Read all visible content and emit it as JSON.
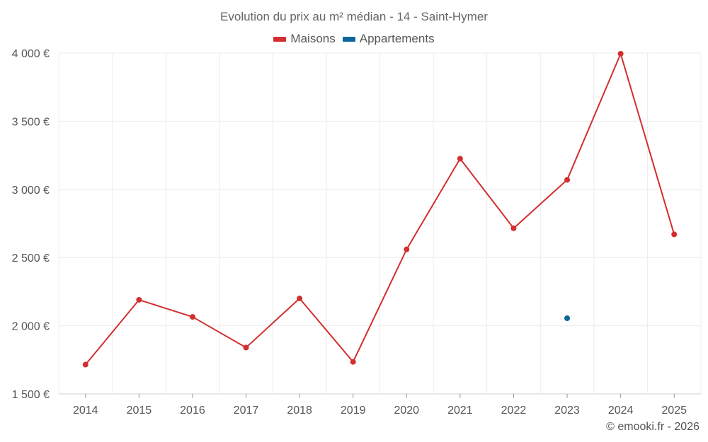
{
  "chart_data": {
    "type": "line",
    "title": "Evolution du prix au m² médian - 14 - Saint-Hymer",
    "xlabel": "",
    "ylabel": "",
    "categories": [
      "2014",
      "2015",
      "2016",
      "2017",
      "2018",
      "2019",
      "2020",
      "2021",
      "2022",
      "2023",
      "2024",
      "2025"
    ],
    "series": [
      {
        "name": "Maisons",
        "color": "#d32f2f",
        "values": [
          1715,
          2190,
          2065,
          1840,
          2200,
          1735,
          2560,
          3225,
          2715,
          3070,
          3995,
          2670
        ]
      },
      {
        "name": "Appartements",
        "color": "#0d6699",
        "values": [
          null,
          null,
          null,
          null,
          null,
          null,
          null,
          null,
          null,
          2055,
          null,
          null
        ]
      }
    ],
    "ylim": [
      1500,
      4000
    ],
    "yticks": [
      1500,
      2000,
      2500,
      3000,
      3500,
      4000
    ],
    "ytick_labels": [
      "1 500 €",
      "2 000 €",
      "2 500 €",
      "3 000 €",
      "3 500 €",
      "4 000 €"
    ],
    "grid": true,
    "legend_position": "top-center"
  },
  "credit": "© emooki.fr - 2026"
}
